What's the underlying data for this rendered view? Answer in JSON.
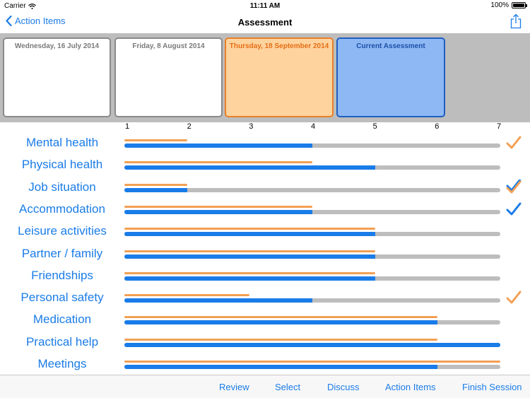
{
  "status_bar": {
    "carrier": "Carrier",
    "time": "11:11 AM",
    "battery": "100%"
  },
  "nav": {
    "back_label": "Action Items",
    "title": "Assessment"
  },
  "assessments": [
    {
      "label": "Wednesday, 16 July 2014",
      "state": "past"
    },
    {
      "label": "Friday, 8 August 2014",
      "state": "past"
    },
    {
      "label": "Thursday, 18 September 2014",
      "state": "selected"
    },
    {
      "label": "Current Assessment",
      "state": "current"
    }
  ],
  "scale": [
    "1",
    "2",
    "3",
    "4",
    "5",
    "6",
    "7"
  ],
  "scale_range": [
    1,
    7
  ],
  "items": [
    {
      "label": "Mental health",
      "current": 4,
      "previous": 2,
      "check": "orange"
    },
    {
      "label": "Physical health",
      "current": 5,
      "previous": 4,
      "check": ""
    },
    {
      "label": "Job situation",
      "current": 2,
      "previous": 2,
      "check": "both"
    },
    {
      "label": "Accommodation",
      "current": 4,
      "previous": 4,
      "check": "blue"
    },
    {
      "label": "Leisure activities",
      "current": 5,
      "previous": 5,
      "check": ""
    },
    {
      "label": "Partner / family",
      "current": 5,
      "previous": 5,
      "check": ""
    },
    {
      "label": "Friendships",
      "current": 5,
      "previous": 5,
      "check": ""
    },
    {
      "label": "Personal safety",
      "current": 4,
      "previous": 3,
      "check": "orange"
    },
    {
      "label": "Medication",
      "current": 6,
      "previous": 6,
      "check": ""
    },
    {
      "label": "Practical help",
      "current": 7,
      "previous": 6,
      "check": ""
    },
    {
      "label": "Meetings",
      "current": 6,
      "previous": 7,
      "check": ""
    }
  ],
  "toolbar": {
    "review": "Review",
    "select": "Select",
    "discuss": "Discuss",
    "action_items": "Action Items",
    "finish_session": "Finish Session"
  },
  "colors": {
    "accent": "#1a7ce8",
    "previous": "#f2a054",
    "track": "#bdbdbd"
  }
}
